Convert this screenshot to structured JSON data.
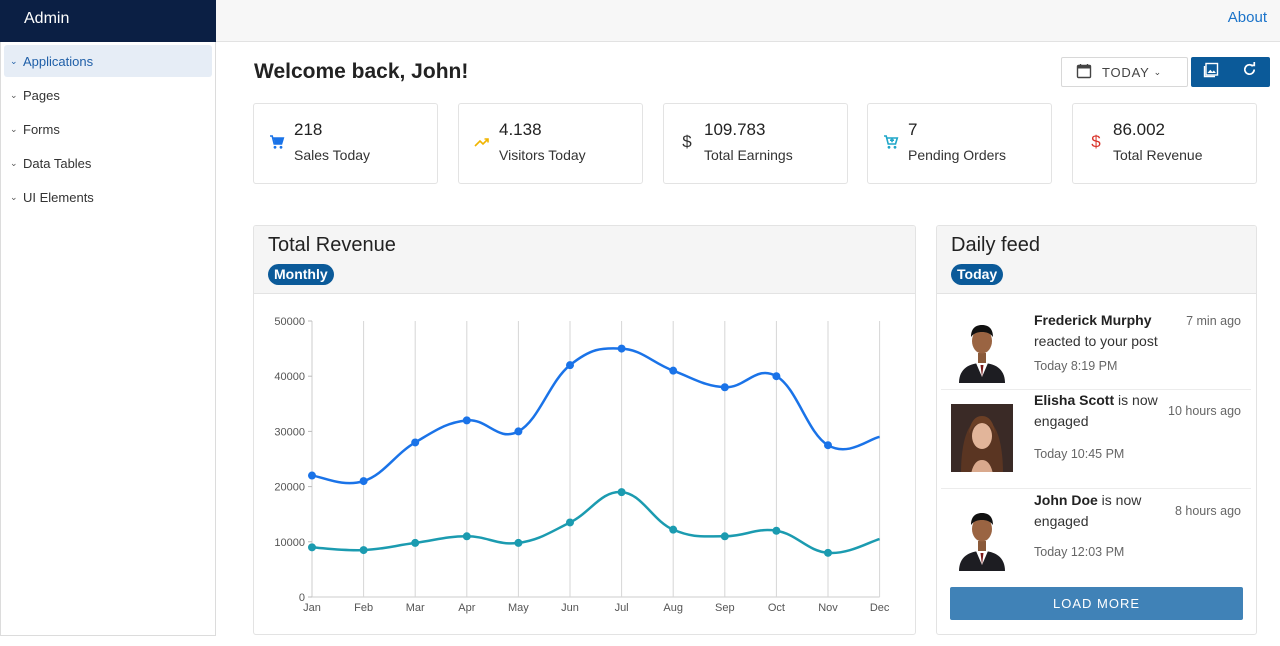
{
  "sidebar": {
    "brand": "Admin",
    "items": [
      {
        "label": "Applications",
        "active": true
      },
      {
        "label": "Pages",
        "active": false
      },
      {
        "label": "Forms",
        "active": false
      },
      {
        "label": "Data Tables",
        "active": false
      },
      {
        "label": "UI Elements",
        "active": false
      }
    ]
  },
  "topbar": {
    "about_label": "About"
  },
  "header": {
    "title": "Welcome back, John!",
    "date_label": "TODAY"
  },
  "stats": [
    {
      "value": "218",
      "label": "Sales Today",
      "icon": "cart-icon",
      "color": "#1a73e8"
    },
    {
      "value": "4.138",
      "label": "Visitors Today",
      "icon": "trending-up-icon",
      "color": "#f0b400"
    },
    {
      "value": "109.783",
      "label": "Total Earnings",
      "icon": "dollar-icon",
      "color": "#333333"
    },
    {
      "value": "7",
      "label": "Pending Orders",
      "icon": "cart-plus-icon",
      "color": "#1fa6c8"
    },
    {
      "value": "86.002",
      "label": "Total Revenue",
      "icon": "dollar-icon",
      "color": "#d9342b"
    }
  ],
  "revenue_panel": {
    "title": "Total Revenue",
    "badge": "Monthly"
  },
  "chart_data": {
    "type": "line",
    "categories": [
      "Jan",
      "Feb",
      "Mar",
      "Apr",
      "May",
      "Jun",
      "Jul",
      "Aug",
      "Sep",
      "Oct",
      "Nov",
      "Dec"
    ],
    "series": [
      {
        "values": [
          22000,
          21000,
          28000,
          32000,
          30000,
          42000,
          45000,
          41000,
          38000,
          40000,
          27500,
          29000
        ],
        "color": "#1a73e8"
      },
      {
        "values": [
          9000,
          8500,
          9800,
          11000,
          9800,
          13500,
          19000,
          12200,
          11000,
          12000,
          8000,
          10500
        ],
        "color": "#1b9bb0"
      }
    ],
    "ylim": [
      0,
      50000
    ],
    "yticks": [
      "0",
      "10000",
      "20000",
      "30000",
      "40000",
      "50000"
    ],
    "grid": "vertical",
    "smooth": true
  },
  "feed_panel": {
    "title": "Daily feed",
    "badge": "Today",
    "items": [
      {
        "name": "Frederick Murphy",
        "action": "reacted to your post",
        "time": "7 min ago",
        "date": "Today 8:19 PM"
      },
      {
        "name": "Elisha Scott",
        "action": "is now engaged",
        "time": "10 hours ago",
        "date": "Today 10:45 PM"
      },
      {
        "name": "John Doe",
        "action": "is now engaged",
        "time": "8 hours ago",
        "date": "Today 12:03 PM"
      }
    ],
    "load_more_label": "LOAD MORE"
  }
}
